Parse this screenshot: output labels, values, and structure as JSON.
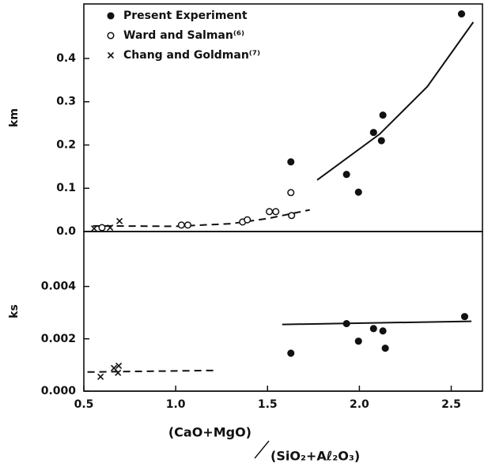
{
  "chart_data": [
    {
      "type": "scatter",
      "ylabel": "km",
      "legend": "upper-left",
      "xlim": [
        0.5,
        2.67
      ],
      "ylim": [
        0,
        0.526
      ],
      "yticks": [
        {
          "value": 0,
          "label": "0.0"
        },
        0.1,
        0.2,
        0.3,
        0.4
      ],
      "series": [
        {
          "name": "Present Experiment",
          "marker": "filled-circle",
          "color": "#111111",
          "x": [
            1.627,
            1.93,
            1.995,
            2.077,
            2.128,
            2.12,
            2.556
          ],
          "values": [
            0.161,
            0.132,
            0.091,
            0.229,
            0.269,
            0.21,
            0.503
          ]
        },
        {
          "name": "Ward and Salman⁽⁶⁾",
          "marker": "open-circle",
          "color": "#111111",
          "x": [
            0.599,
            1.031,
            1.066,
            1.364,
            1.39,
            1.51,
            1.545,
            1.627,
            1.631
          ],
          "values": [
            0.009,
            0.015,
            0.015,
            0.022,
            0.027,
            0.046,
            0.046,
            0.09,
            0.037
          ]
        },
        {
          "name": "Chang and Goldman⁽⁷⁾",
          "marker": "cross",
          "color": "#111111",
          "x": [
            0.556,
            0.643,
            0.694
          ],
          "values": [
            0.007,
            0.009,
            0.024
          ]
        }
      ],
      "fits": [
        {
          "dash": true,
          "x": [
            0.55,
            1.0,
            1.3,
            1.5,
            1.73
          ],
          "values": [
            0.013,
            0.012,
            0.018,
            0.03,
            0.05
          ]
        },
        {
          "dash": false,
          "x": [
            1.77,
            2.11,
            2.37,
            2.62
          ],
          "values": [
            0.119,
            0.225,
            0.335,
            0.484
          ]
        }
      ]
    },
    {
      "type": "scatter",
      "ylabel": "ks",
      "xlabel": [
        "(CaO+MgO)",
        "(SiO₂+Aℓ₂O₃)"
      ],
      "xlim": [
        0.5,
        2.67
      ],
      "ylim": [
        0,
        0.0061
      ],
      "xticks": [
        0.5,
        {
          "value": 1,
          "label": "1.0"
        },
        1.5,
        {
          "value": 2,
          "label": "2.0"
        },
        2.5
      ],
      "yticks": [
        {
          "value": 0,
          "label": "0.000"
        },
        {
          "value": 0.002,
          "label": "0.002"
        },
        {
          "value": 0.004,
          "label": "0.004"
        }
      ],
      "series": [
        {
          "marker": "filled-circle",
          "color": "#111111",
          "x": [
            1.627,
            1.93,
            1.995,
            2.077,
            2.128,
            2.141,
            2.573
          ],
          "values": [
            0.00145,
            0.00258,
            0.00191,
            0.00239,
            0.0023,
            0.00164,
            0.00285
          ]
        },
        {
          "marker": "cross",
          "color": "#111111",
          "x": [
            0.591,
            0.664,
            0.69,
            0.686
          ],
          "values": [
            0.00055,
            0.00088,
            0.00097,
            0.0007
          ]
        }
      ],
      "fits": [
        {
          "dash": true,
          "x": [
            0.52,
            1.21
          ],
          "values": [
            0.00073,
            0.00079
          ]
        },
        {
          "dash": false,
          "x": [
            1.58,
            2.61
          ],
          "values": [
            0.00255,
            0.00267
          ]
        }
      ]
    }
  ]
}
